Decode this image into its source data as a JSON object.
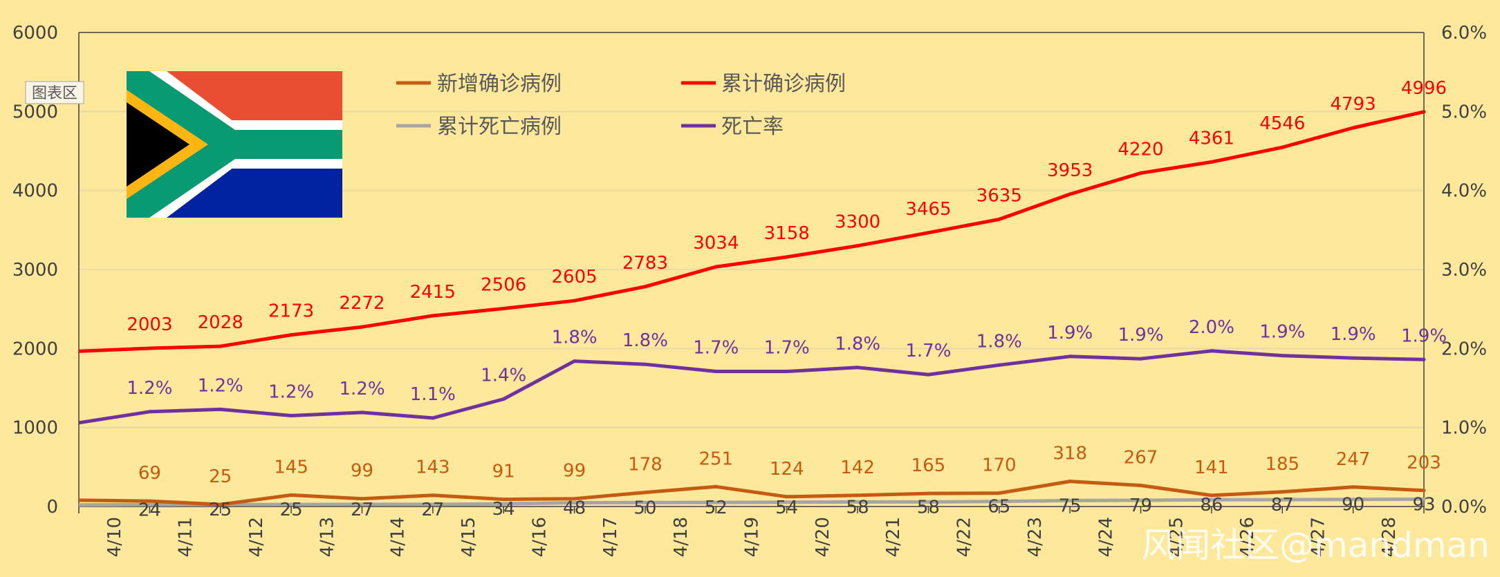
{
  "chart_data": {
    "type": "line",
    "categories": [
      "4/10",
      "4/11",
      "4/12",
      "4/13",
      "4/14",
      "4/15",
      "4/16",
      "4/17",
      "4/18",
      "4/19",
      "4/20",
      "4/21",
      "4/22",
      "4/23",
      "4/24",
      "4/25",
      "4/26",
      "4/27",
      "4/28"
    ],
    "series": [
      {
        "name": "新增确诊病例",
        "axis": "left",
        "color": "#c55a11",
        "start": 80,
        "values": [
          69,
          25,
          145,
          99,
          143,
          91,
          99,
          178,
          251,
          124,
          142,
          165,
          170,
          318,
          267,
          141,
          185,
          247,
          203
        ]
      },
      {
        "name": "累计确诊病例",
        "axis": "left",
        "color": "#ff0000",
        "start": 1965,
        "values": [
          2003,
          2028,
          2173,
          2272,
          2415,
          2506,
          2605,
          2783,
          3034,
          3158,
          3300,
          3465,
          3635,
          3953,
          4220,
          4361,
          4546,
          4793,
          4996
        ]
      },
      {
        "name": "累计死亡病例",
        "axis": "left",
        "color": "#a5a5a5",
        "start": 20,
        "values": [
          24,
          25,
          25,
          27,
          27,
          34,
          48,
          50,
          52,
          54,
          58,
          58,
          65,
          75,
          79,
          86,
          87,
          90,
          93
        ]
      },
      {
        "name": "死亡率",
        "axis": "right",
        "color": "#7030a0",
        "start": 0.0106,
        "values": [
          0.012,
          0.0123,
          0.0115,
          0.0119,
          0.0112,
          0.0136,
          0.0184,
          0.018,
          0.0171,
          0.0171,
          0.0176,
          0.0167,
          0.0179,
          0.019,
          0.0187,
          0.0197,
          0.0191,
          0.0188,
          0.0186
        ],
        "labels": [
          "1.2%",
          "1.2%",
          "1.2%",
          "1.2%",
          "1.1%",
          "1.4%",
          "1.8%",
          "1.8%",
          "1.7%",
          "1.7%",
          "1.8%",
          "1.7%",
          "1.8%",
          "1.9%",
          "1.9%",
          "2.0%",
          "1.9%",
          "1.9%",
          "1.9%"
        ]
      }
    ],
    "left_axis": {
      "min": 0,
      "max": 6000,
      "ticks": [
        "0",
        "1000",
        "2000",
        "3000",
        "4000",
        "5000",
        "6000"
      ]
    },
    "right_axis": {
      "min": 0,
      "max": 0.06,
      "ticks": [
        "0.0%",
        "1.0%",
        "2.0%",
        "3.0%",
        "4.0%",
        "5.0%",
        "6.0%"
      ]
    },
    "grid": true,
    "legend_position": "top-left",
    "chart_area_label": "图表区",
    "watermark": "风闻社区@mandman",
    "flag": "south-africa"
  }
}
